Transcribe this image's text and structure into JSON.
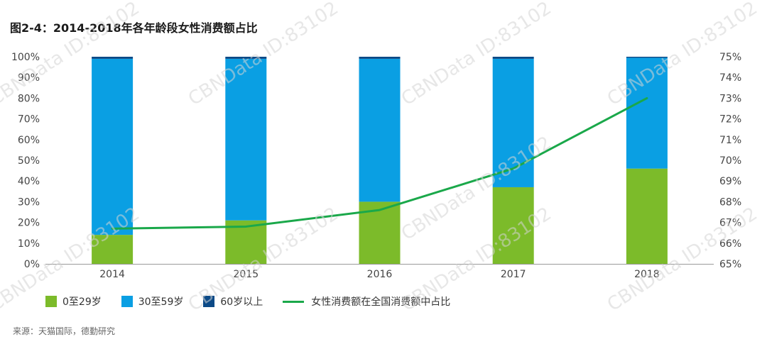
{
  "title": "图2-4：2014-2018年各年龄段女性消费额占比",
  "source": "来源：天猫国际，德勤研究",
  "watermark": "CBNData ID:83102",
  "chart_data": {
    "type": "bar",
    "stacked": true,
    "categories": [
      "2014",
      "2015",
      "2016",
      "2017",
      "2018"
    ],
    "series": [
      {
        "name": "0至29岁",
        "color": "#7cbb2a",
        "axis": "left",
        "values": [
          14,
          21,
          30,
          37,
          46
        ]
      },
      {
        "name": "30至59岁",
        "color": "#0a9fe3",
        "axis": "left",
        "values": [
          85,
          78,
          69,
          62,
          53.5
        ]
      },
      {
        "name": "60岁以上",
        "color": "#0c4a87",
        "axis": "left",
        "values": [
          1,
          1,
          1,
          1,
          0.5
        ]
      },
      {
        "name": "女性消费额在全国消费额中占比",
        "type": "line",
        "color": "#1aa84a",
        "axis": "right",
        "values": [
          66.7,
          66.8,
          67.6,
          69.6,
          73.0
        ]
      }
    ],
    "y_left": {
      "min": 0,
      "max": 100,
      "step": 10,
      "ticks": [
        "0%",
        "10%",
        "20%",
        "30%",
        "40%",
        "50%",
        "60%",
        "70%",
        "80%",
        "90%",
        "100%"
      ]
    },
    "y_right": {
      "min": 65,
      "max": 75,
      "step": 1,
      "ticks": [
        "65%",
        "66%",
        "67%",
        "68%",
        "69%",
        "70%",
        "71%",
        "72%",
        "73%",
        "74%",
        "75%"
      ]
    },
    "grid": false,
    "legend_position": "bottom-left"
  }
}
